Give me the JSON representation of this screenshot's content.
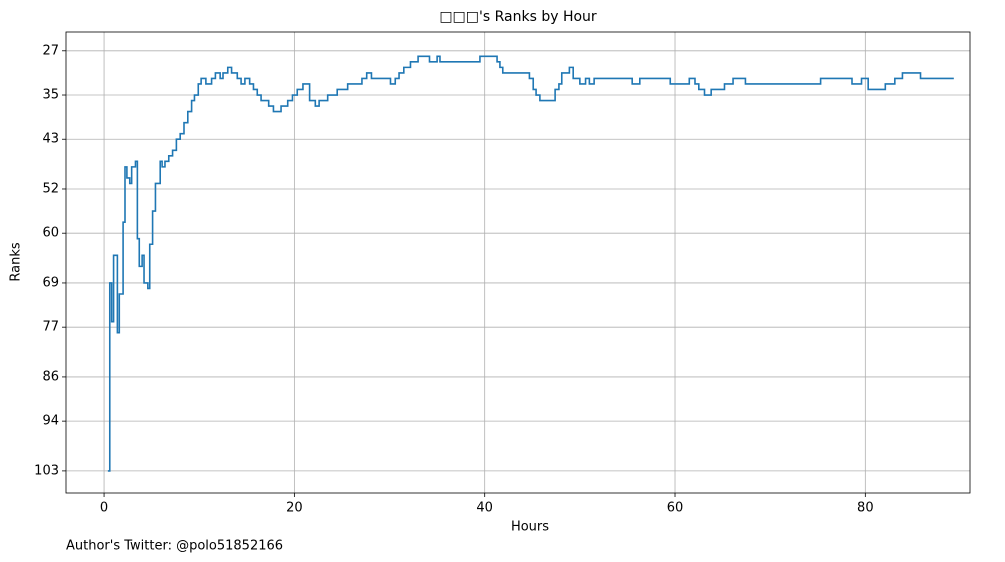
{
  "chart_data": {
    "type": "step",
    "title": "□□□'s Ranks by Hour",
    "x_label": "Hours",
    "y_label": "Ranks",
    "footer": "Author's Twitter: @polo51852166",
    "xlim": [
      -4,
      91
    ],
    "xticks": [
      0,
      20,
      40,
      60,
      80
    ],
    "ylim": [
      23.6,
      107
    ],
    "y_inverted": true,
    "yticks": [
      27,
      35,
      43,
      52,
      60,
      69,
      77,
      86,
      94,
      103
    ],
    "grid": true,
    "series": [
      {
        "color": "#1f77b4",
        "x": [
          0.4,
          0.6,
          0.8,
          1.0,
          1.4,
          1.6,
          2.0,
          2.2,
          2.4,
          2.7,
          2.9,
          3.3,
          3.5,
          3.7,
          4.0,
          4.2,
          4.6,
          4.8,
          5.1,
          5.4,
          5.9,
          6.1,
          6.4,
          6.8,
          7.2,
          7.6,
          8.0,
          8.4,
          8.8,
          9.2,
          9.5,
          9.9,
          10.2,
          10.7,
          11.3,
          11.7,
          12.2,
          12.5,
          13.0,
          13.4,
          14.0,
          14.4,
          14.8,
          15.3,
          15.7,
          16.1,
          16.5,
          17.3,
          17.8,
          18.6,
          19.3,
          19.8,
          20.3,
          20.9,
          21.6,
          22.2,
          22.6,
          23.5,
          24.5,
          25.6,
          27.1,
          27.6,
          28.1,
          30.1,
          30.6,
          31.0,
          31.5,
          32.2,
          33.0,
          34.2,
          35.0,
          35.3,
          39.5,
          41.3,
          41.6,
          41.9,
          44.7,
          45.1,
          45.4,
          45.8,
          47.4,
          47.8,
          48.1,
          48.9,
          49.3,
          50.0,
          50.6,
          51.0,
          51.5,
          55.5,
          56.3,
          59.5,
          61.5,
          62.1,
          62.5,
          63.1,
          63.8,
          65.2,
          66.1,
          67.4,
          75.3,
          78.6,
          79.6,
          80.3,
          82.1,
          83.1,
          83.9,
          85.8,
          89.3
        ],
        "values": [
          103,
          69,
          76,
          64,
          78,
          71,
          58,
          48,
          50,
          51,
          48,
          47,
          61,
          66,
          64,
          69,
          70,
          62,
          56,
          51,
          47,
          48,
          47,
          46,
          45,
          43,
          42,
          40,
          38,
          36,
          35,
          33,
          32,
          33,
          32,
          31,
          32,
          31,
          30,
          31,
          32,
          33,
          32,
          33,
          34,
          35,
          36,
          37,
          38,
          37,
          36,
          35,
          34,
          33,
          36,
          37,
          36,
          35,
          34,
          33,
          32,
          31,
          32,
          33,
          32,
          31,
          30,
          29,
          28,
          29,
          28,
          29,
          28,
          29,
          30,
          31,
          32,
          34,
          35,
          36,
          34,
          33,
          31,
          30,
          32,
          33,
          32,
          33,
          32,
          33,
          32,
          33,
          32,
          33,
          34,
          35,
          34,
          33,
          32,
          33,
          32,
          33,
          32,
          34,
          33,
          32,
          31,
          32,
          32
        ]
      }
    ]
  }
}
